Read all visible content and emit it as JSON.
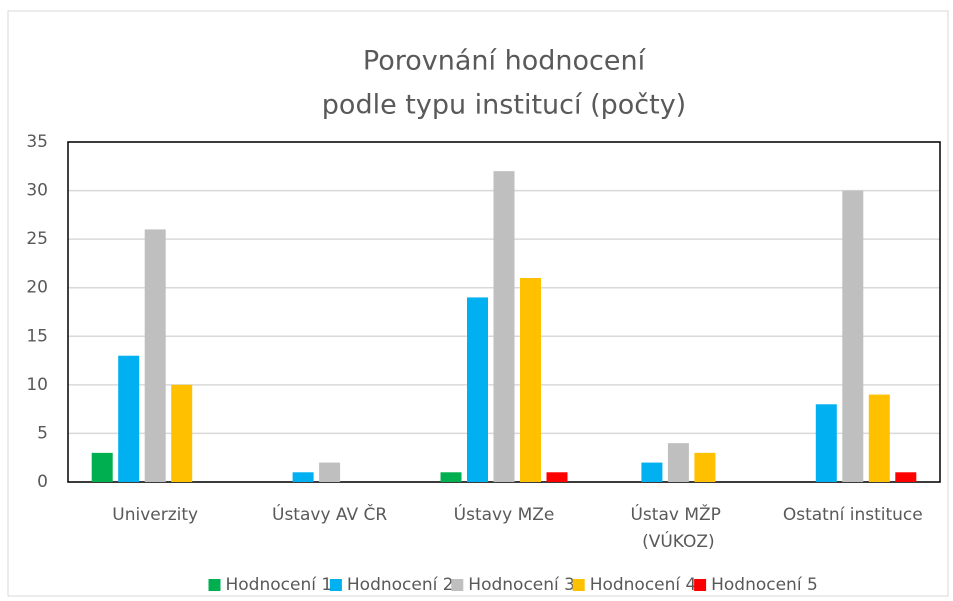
{
  "chart_data": {
    "type": "bar",
    "title": [
      "Porovnání hodnocení",
      "podle typu institucí (počty)"
    ],
    "categories": [
      "Univerzity",
      "Ústavy AV ČR",
      "Ústavy MZe",
      "Ústav MŽP (VÚKOZ)",
      "Ostatní instituce"
    ],
    "series": [
      {
        "name": "Hodnocení 1",
        "color": "#00b050",
        "values": [
          3,
          0,
          1,
          0,
          0
        ]
      },
      {
        "name": "Hodnocení 2",
        "color": "#00b0f0",
        "values": [
          13,
          1,
          19,
          2,
          8
        ]
      },
      {
        "name": "Hodnocení 3",
        "color": "#bfbfbf",
        "values": [
          26,
          2,
          32,
          4,
          30
        ]
      },
      {
        "name": "Hodnocení 4",
        "color": "#ffc000",
        "values": [
          10,
          0,
          21,
          3,
          9
        ]
      },
      {
        "name": "Hodnocení 5",
        "color": "#ff0000",
        "values": [
          0,
          0,
          1,
          0,
          1
        ]
      }
    ],
    "ylim": [
      0,
      35
    ],
    "yticks": [
      0,
      5,
      10,
      15,
      20,
      25,
      30,
      35
    ],
    "grid": true,
    "legend": "bottom"
  }
}
